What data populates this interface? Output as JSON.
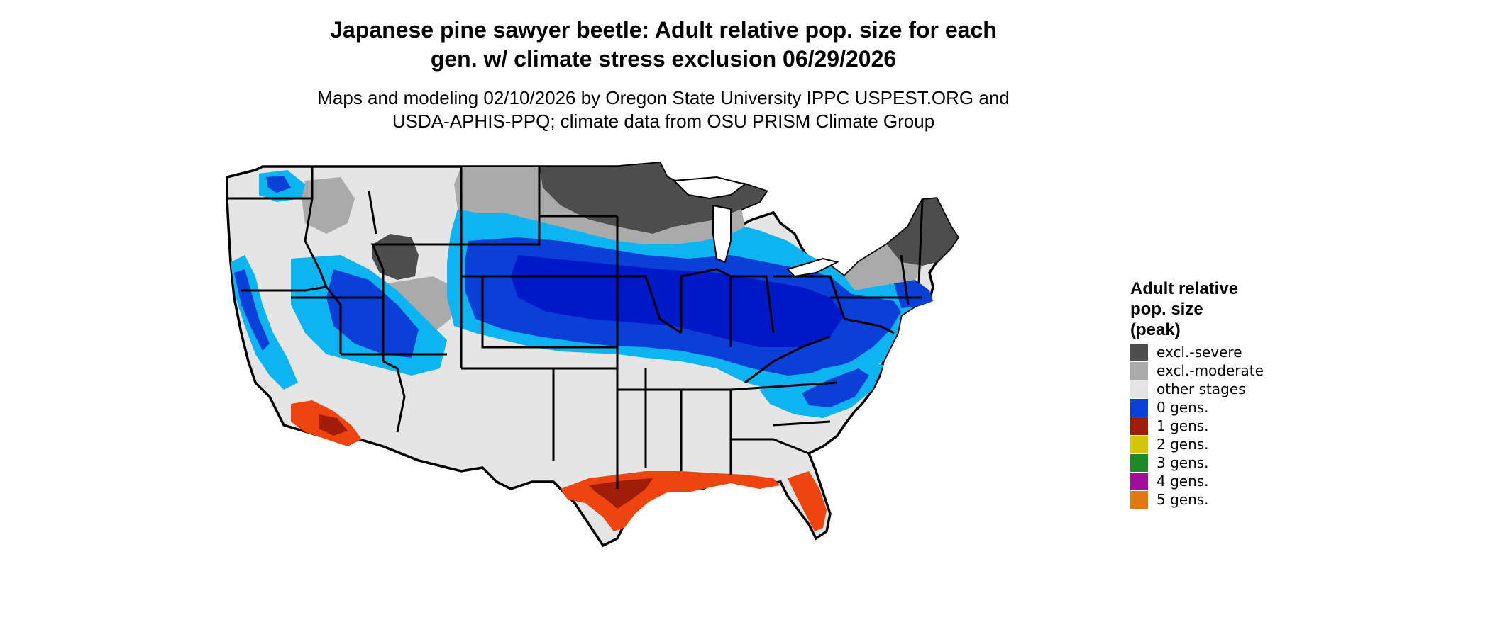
{
  "title_line1": "Japanese pine sawyer beetle: Adult relative pop. size for each",
  "title_line2": "gen. w/ climate stress exclusion 06/29/2026",
  "subtitle_line1": "Maps and modeling 02/10/2026 by Oregon State University IPPC USPEST.ORG and",
  "subtitle_line2": "USDA-APHIS-PPQ; climate data from OSU PRISM Climate Group",
  "legend": {
    "title_line1": "Adult relative",
    "title_line2": "pop. size",
    "title_line3": "(peak)",
    "items": [
      {
        "label": "excl.-severe",
        "color": "#4d4d4d"
      },
      {
        "label": "excl.-moderate",
        "color": "#aaaaaa"
      },
      {
        "label": "other stages",
        "color": "#e5e5e5"
      },
      {
        "label": "0 gens.",
        "color": "#0a3fd8"
      },
      {
        "label": "1 gens.",
        "color": "#a01d0a"
      },
      {
        "label": "2 gens.",
        "color": "#d4c40a"
      },
      {
        "label": "3 gens.",
        "color": "#1f8a25"
      },
      {
        "label": "4 gens.",
        "color": "#a00e9a"
      },
      {
        "label": "5 gens.",
        "color": "#e07a10"
      }
    ]
  },
  "map_colors": {
    "background": "#e5e5e5",
    "border": "#000000",
    "light_blue": "#0db4f2",
    "blue": "#0a3fd8",
    "dark_blue": "#0019c8",
    "red_orange": "#f04410",
    "dark_red": "#a01d0a",
    "gray": "#aaaaaa",
    "dark_gray": "#4d4d4d"
  }
}
